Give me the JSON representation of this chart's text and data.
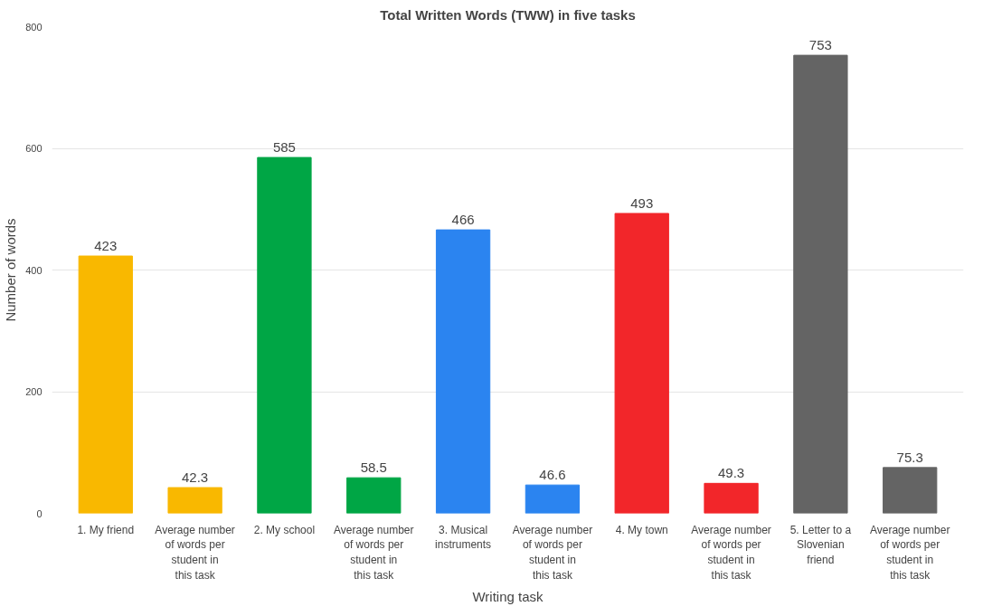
{
  "chart_data": {
    "type": "bar",
    "title": "Total Written Words (TWW) in five tasks",
    "xlabel": "Writing task",
    "ylabel": "Number of words",
    "categories": [
      "1. My friend",
      "Average number of words per student in this task",
      "2. My school",
      "Average number of words per student in this task",
      "3. Musical instruments",
      "Average number of words per student in this task",
      "4. My town",
      "Average number of words per student in this task",
      "5. Letter to a Slovenian friend",
      "Average number of words per student in this task"
    ],
    "values": [
      423,
      42.3,
      585,
      58.5,
      466,
      46.6,
      493,
      49.3,
      753,
      75.3
    ],
    "colors": [
      "#f9b800",
      "#f9b800",
      "#00a645",
      "#00a645",
      "#2b84f0",
      "#2b84f0",
      "#f2262a",
      "#f2262a",
      "#646464",
      "#646464"
    ],
    "ylim": [
      0,
      800
    ],
    "yticks": [
      0,
      200,
      400,
      600,
      800
    ],
    "grid": "y",
    "data_labels": true
  }
}
